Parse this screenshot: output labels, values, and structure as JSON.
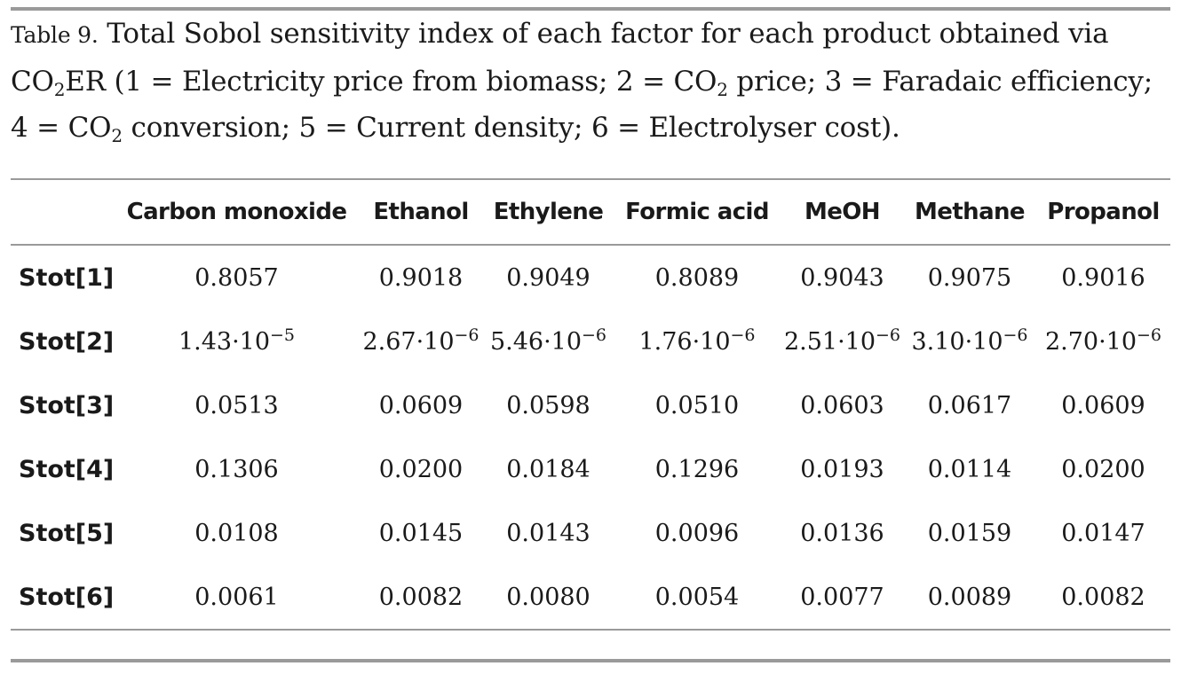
{
  "caption": {
    "label": "Table 9.",
    "text_1": " Total Sobol sensitivity index of each factor for each product obtained via CO",
    "sub_1": "2",
    "text_2": "ER (1 = Electricity price from biomass; 2 = CO",
    "sub_2": "2",
    "text_3": " price; 3 = Faradaic efficiency; 4 = CO",
    "sub_3": "2",
    "text_4": " conversion; 5 = Current density; 6 = Electrolyser cost)."
  },
  "table": {
    "columns": [
      "",
      "Carbon monoxide",
      "Ethanol",
      "Ethylene",
      "Formic acid",
      "MeOH",
      "Methane",
      "Propanol"
    ],
    "rows": [
      {
        "label": "Stot[1]",
        "cells": [
          {
            "text": "0.8057"
          },
          {
            "text": "0.9018"
          },
          {
            "text": "0.9049"
          },
          {
            "text": "0.8089"
          },
          {
            "text": "0.9043"
          },
          {
            "text": "0.9075"
          },
          {
            "text": "0.9016"
          }
        ]
      },
      {
        "label": "Stot[2]",
        "cells": [
          {
            "text": "1.43·10",
            "sup": "−5"
          },
          {
            "text": "2.67·10",
            "sup": "−6"
          },
          {
            "text": "5.46·10",
            "sup": "−6"
          },
          {
            "text": "1.76·10",
            "sup": "−6"
          },
          {
            "text": "2.51·10",
            "sup": "−6"
          },
          {
            "text": "3.10·10",
            "sup": "−6"
          },
          {
            "text": "2.70·10",
            "sup": "−6"
          }
        ]
      },
      {
        "label": "Stot[3]",
        "cells": [
          {
            "text": "0.0513"
          },
          {
            "text": "0.0609"
          },
          {
            "text": "0.0598"
          },
          {
            "text": "0.0510"
          },
          {
            "text": "0.0603"
          },
          {
            "text": "0.0617"
          },
          {
            "text": "0.0609"
          }
        ]
      },
      {
        "label": "Stot[4]",
        "cells": [
          {
            "text": "0.1306"
          },
          {
            "text": "0.0200"
          },
          {
            "text": "0.0184"
          },
          {
            "text": "0.1296"
          },
          {
            "text": "0.0193"
          },
          {
            "text": "0.0114"
          },
          {
            "text": "0.0200"
          }
        ]
      },
      {
        "label": "Stot[5]",
        "cells": [
          {
            "text": "0.0108"
          },
          {
            "text": "0.0145"
          },
          {
            "text": "0.0143"
          },
          {
            "text": "0.0096"
          },
          {
            "text": "0.0136"
          },
          {
            "text": "0.0159"
          },
          {
            "text": "0.0147"
          }
        ]
      },
      {
        "label": "Stot[6]",
        "cells": [
          {
            "text": "0.0061"
          },
          {
            "text": "0.0082"
          },
          {
            "text": "0.0080"
          },
          {
            "text": "0.0054"
          },
          {
            "text": "0.0077"
          },
          {
            "text": "0.0089"
          },
          {
            "text": "0.0082"
          }
        ]
      }
    ]
  },
  "colors": {
    "rule": "#9a9a9a",
    "text": "#1a1a1a"
  }
}
